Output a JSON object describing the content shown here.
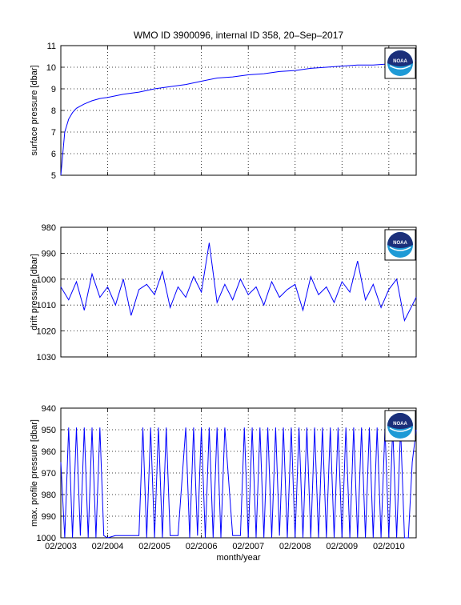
{
  "figure": {
    "title": "WMO ID 3900096, internal ID 358, 20–Sep–2017",
    "xlabel": "month/year",
    "logo_text": "NOAA",
    "colors": {
      "series": "#0000ff",
      "grid": "#000000",
      "background": "#ffffff"
    }
  },
  "chart_data": [
    {
      "type": "line",
      "panel": "top",
      "title": "WMO ID 3900096, internal ID 358, 20–Sep–2017",
      "ylabel": "surface pressure [dbar]",
      "xlabel": "",
      "xlim": [
        "2003-02",
        "2010-09"
      ],
      "ylim": [
        5,
        11
      ],
      "y_reversed": false,
      "grid": true,
      "xticks": [
        "02/2003",
        "02/2004",
        "02/2005",
        "02/2006",
        "02/2007",
        "02/2008",
        "02/2009",
        "02/2010"
      ],
      "yticks": [
        "5",
        "6",
        "7",
        "8",
        "9",
        "10",
        "11"
      ],
      "series": [
        {
          "x": [
            "2003-02",
            "2003-03",
            "2003-04",
            "2003-05",
            "2003-06",
            "2003-07",
            "2003-08",
            "2003-10",
            "2003-12",
            "2004-02",
            "2004-06",
            "2004-10",
            "2005-02",
            "2005-06",
            "2005-10",
            "2006-02",
            "2006-06",
            "2006-10",
            "2007-02",
            "2007-06",
            "2007-10",
            "2008-02",
            "2008-06",
            "2008-10",
            "2009-02",
            "2009-06",
            "2009-10",
            "2010-02",
            "2010-06",
            "2010-09"
          ],
          "y": [
            5.0,
            7.0,
            7.6,
            7.9,
            8.1,
            8.2,
            8.3,
            8.45,
            8.55,
            8.6,
            8.75,
            8.85,
            9.0,
            9.1,
            9.2,
            9.35,
            9.5,
            9.55,
            9.65,
            9.7,
            9.8,
            9.85,
            9.95,
            10.0,
            10.05,
            10.1,
            10.1,
            10.15,
            10.2,
            10.3
          ]
        }
      ]
    },
    {
      "type": "line",
      "panel": "middle",
      "ylabel": "drift pressure [dbar]",
      "xlabel": "",
      "xlim": [
        "2003-02",
        "2010-09"
      ],
      "ylim": [
        980,
        1030
      ],
      "y_reversed": true,
      "grid": true,
      "xticks": [
        "02/2003",
        "02/2004",
        "02/2005",
        "02/2006",
        "02/2007",
        "02/2008",
        "02/2009",
        "02/2010"
      ],
      "yticks": [
        "980",
        "990",
        "1000",
        "1010",
        "1020",
        "1030"
      ],
      "series": [
        {
          "x": [
            "2003-02",
            "2003-04",
            "2003-06",
            "2003-08",
            "2003-10",
            "2003-12",
            "2004-02",
            "2004-04",
            "2004-06",
            "2004-08",
            "2004-10",
            "2004-12",
            "2005-02",
            "2005-04",
            "2005-06",
            "2005-08",
            "2005-10",
            "2005-12",
            "2006-02",
            "2006-04",
            "2006-06",
            "2006-08",
            "2006-10",
            "2006-12",
            "2007-02",
            "2007-04",
            "2007-06",
            "2007-08",
            "2007-10",
            "2007-12",
            "2008-02",
            "2008-04",
            "2008-06",
            "2008-08",
            "2008-10",
            "2008-12",
            "2009-02",
            "2009-04",
            "2009-06",
            "2009-08",
            "2009-10",
            "2009-12",
            "2010-02",
            "2010-04",
            "2010-06",
            "2010-09"
          ],
          "y": [
            1003,
            1008,
            1001,
            1012,
            998,
            1007,
            1003,
            1010,
            1000,
            1014,
            1004,
            1002,
            1006,
            997,
            1011,
            1003,
            1007,
            999,
            1005,
            986,
            1009,
            1002,
            1008,
            1000,
            1006,
            1003,
            1010,
            1001,
            1007,
            1004,
            1002,
            1012,
            999,
            1006,
            1003,
            1009,
            1001,
            1005,
            993,
            1008,
            1002,
            1011,
            1004,
            1000,
            1016,
            1007
          ]
        }
      ]
    },
    {
      "type": "line",
      "panel": "bottom",
      "ylabel": "max. profile pressure [dbar]",
      "xlabel": "month/year",
      "xlim": [
        "2003-02",
        "2010-09"
      ],
      "ylim": [
        940,
        1000
      ],
      "y_reversed": true,
      "grid": true,
      "xticks": [
        "02/2003",
        "02/2004",
        "02/2005",
        "02/2006",
        "02/2007",
        "02/2008",
        "02/2009",
        "02/2010"
      ],
      "yticks": [
        "940",
        "950",
        "960",
        "970",
        "980",
        "990",
        "1000"
      ],
      "series": [
        {
          "x": [
            "2003-02",
            "2003-03",
            "2003-04",
            "2003-05",
            "2003-06",
            "2003-07",
            "2003-08",
            "2003-09",
            "2003-10",
            "2003-11",
            "2003-12",
            "2004-01",
            "2004-02",
            "2004-04",
            "2004-06",
            "2004-08",
            "2004-10",
            "2004-11",
            "2004-12",
            "2005-01",
            "2005-02",
            "2005-03",
            "2005-04",
            "2005-05",
            "2005-06",
            "2005-08",
            "2005-10",
            "2005-11",
            "2005-12",
            "2006-01",
            "2006-02",
            "2006-03",
            "2006-04",
            "2006-05",
            "2006-06",
            "2006-07",
            "2006-08",
            "2006-10",
            "2006-12",
            "2007-01",
            "2007-02",
            "2007-03",
            "2007-04",
            "2007-05",
            "2007-06",
            "2007-07",
            "2007-08",
            "2007-09",
            "2007-10",
            "2007-11",
            "2007-12",
            "2008-01",
            "2008-02",
            "2008-03",
            "2008-04",
            "2008-05",
            "2008-06",
            "2008-07",
            "2008-08",
            "2008-09",
            "2008-10",
            "2008-11",
            "2008-12",
            "2009-01",
            "2009-02",
            "2009-03",
            "2009-04",
            "2009-05",
            "2009-06",
            "2009-07",
            "2009-08",
            "2009-09",
            "2009-10",
            "2009-11",
            "2009-12",
            "2010-01",
            "2010-02",
            "2010-03",
            "2010-04",
            "2010-05",
            "2010-06",
            "2010-07",
            "2010-08",
            "2010-09"
          ],
          "y": [
            965,
            1000,
            949,
            1000,
            949,
            999,
            949,
            1000,
            949,
            1000,
            949,
            999,
            1000,
            999,
            999,
            999,
            999,
            949,
            1000,
            949,
            1000,
            949,
            1000,
            949,
            999,
            999,
            949,
            1000,
            949,
            999,
            949,
            1000,
            949,
            1000,
            949,
            1000,
            949,
            999,
            999,
            949,
            1000,
            949,
            1000,
            949,
            1000,
            949,
            1000,
            949,
            999,
            949,
            1000,
            949,
            1000,
            949,
            1000,
            949,
            1000,
            949,
            1000,
            949,
            1000,
            949,
            1000,
            949,
            1000,
            949,
            1000,
            949,
            1000,
            949,
            1000,
            949,
            1000,
            949,
            1000,
            949,
            1000,
            949,
            1000,
            949,
            1000,
            1000,
            965,
            950
          ]
        }
      ]
    }
  ]
}
